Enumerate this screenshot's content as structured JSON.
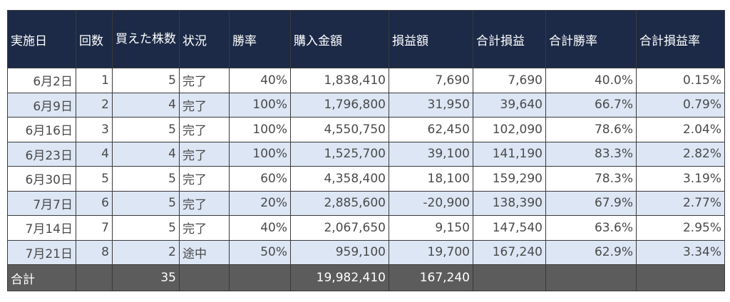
{
  "headers": [
    "実施日",
    "回数",
    "買えた株数",
    "状況",
    "勝率",
    "購入金額",
    "損益額",
    "合計損益",
    "合計勝率",
    "合計損益率"
  ],
  "rows": [
    [
      "6月2日",
      "1",
      "5",
      "完了",
      "40%",
      "1,838,410",
      "7,690",
      "7,690",
      "40.0%",
      "0.15%"
    ],
    [
      "6月9日",
      "2",
      "4",
      "完了",
      "100%",
      "1,796,800",
      "31,950",
      "39,640",
      "66.7%",
      "0.79%"
    ],
    [
      "6月16日",
      "3",
      "5",
      "完了",
      "100%",
      "4,550,750",
      "62,450",
      "102,090",
      "78.6%",
      "2.04%"
    ],
    [
      "6月23日",
      "4",
      "4",
      "完了",
      "100%",
      "1,525,700",
      "39,100",
      "141,190",
      "83.3%",
      "2.82%"
    ],
    [
      "6月30日",
      "5",
      "5",
      "完了",
      "60%",
      "4,358,400",
      "18,100",
      "159,290",
      "78.3%",
      "3.19%"
    ],
    [
      "7月7日",
      "6",
      "5",
      "完了",
      "20%",
      "2,885,600",
      "-20,900",
      "138,390",
      "67.9%",
      "2.77%"
    ],
    [
      "7月14日",
      "7",
      "5",
      "完了",
      "40%",
      "2,067,650",
      "9,150",
      "147,540",
      "63.6%",
      "2.95%"
    ],
    [
      "7月21日",
      "8",
      "2",
      "途中",
      "50%",
      "959,100",
      "19,700",
      "167,240",
      "62.9%",
      "3.34%"
    ]
  ],
  "total": [
    "合計",
    "",
    "35",
    "",
    "",
    "19,982,410",
    "167,240",
    "",
    "",
    ""
  ],
  "colors": {
    "header_bg": "#1c2a47",
    "band_bg": "#dce6f4",
    "total_bg": "#5c5c5c"
  }
}
